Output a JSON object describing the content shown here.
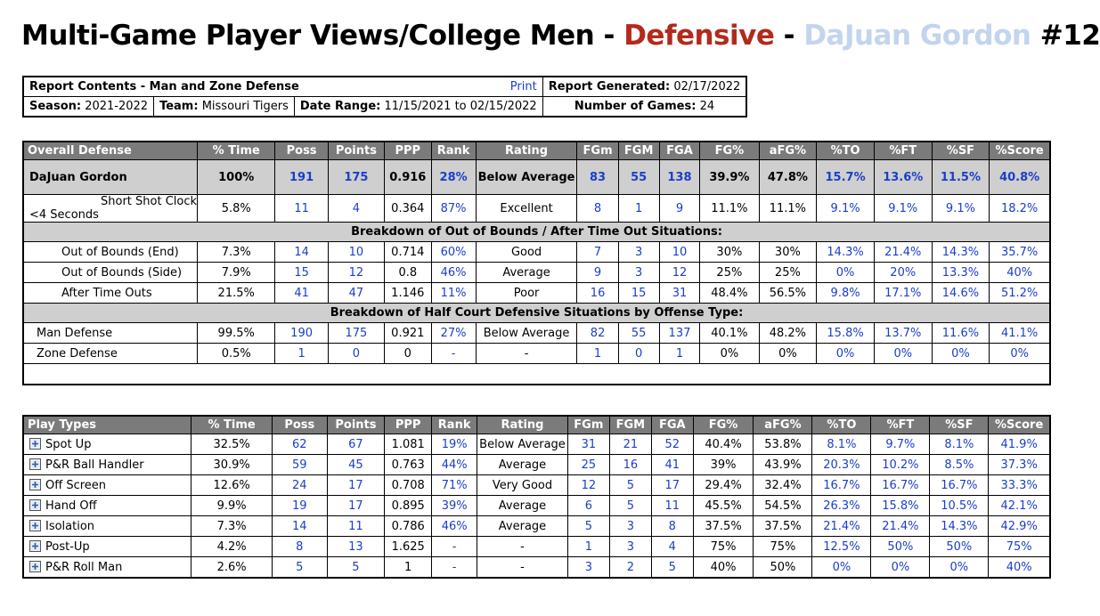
{
  "title": {
    "prefix": "Multi-Game Player Views/College Men - ",
    "defensive": "Defensive",
    "sep": " - ",
    "player": "DaJuan Gordon",
    "number": " #12"
  },
  "header": {
    "report_contents": "Report Contents - Man and Zone Defense",
    "print": "Print",
    "report_generated_label": "Report Generated:",
    "report_generated_value": "02/17/2022",
    "season_label": "Season:",
    "season_value": "2021-2022",
    "team_label": "Team:",
    "team_value": "Missouri Tigers",
    "date_range_label": "Date Range:",
    "date_range_value": "11/15/2021 to 02/15/2022",
    "games_label": "Number of Games:",
    "games_value": "24"
  },
  "overall": {
    "columns": [
      "Overall Defense",
      "% Time",
      "Poss",
      "Points",
      "PPP",
      "Rank",
      "Rating",
      "FGm",
      "FGM",
      "FGA",
      "FG%",
      "aFG%",
      "%TO",
      "%FT",
      "%SF",
      "%Score"
    ],
    "player_row": [
      "DaJuan Gordon",
      "100%",
      "191",
      "175",
      "0.916",
      "28%",
      "Below Average",
      "83",
      "55",
      "138",
      "39.9%",
      "47.8%",
      "15.7%",
      "13.6%",
      "11.5%",
      "40.8%"
    ],
    "ssc_line1": "Short Shot Clock",
    "ssc_line2": "<4 Seconds",
    "ssc_row": [
      "5.8%",
      "11",
      "4",
      "0.364",
      "87%",
      "Excellent",
      "8",
      "1",
      "9",
      "11.1%",
      "11.1%",
      "9.1%",
      "9.1%",
      "9.1%",
      "18.2%"
    ],
    "section1": "Breakdown of Out of Bounds / After Time Out Situations:",
    "oob_rows": [
      [
        "Out of Bounds (End)",
        "7.3%",
        "14",
        "10",
        "0.714",
        "60%",
        "Good",
        "7",
        "3",
        "10",
        "30%",
        "30%",
        "14.3%",
        "21.4%",
        "14.3%",
        "35.7%"
      ],
      [
        "Out of Bounds (Side)",
        "7.9%",
        "15",
        "12",
        "0.8",
        "46%",
        "Average",
        "9",
        "3",
        "12",
        "25%",
        "25%",
        "0%",
        "20%",
        "13.3%",
        "40%"
      ],
      [
        "After Time Outs",
        "21.5%",
        "41",
        "47",
        "1.146",
        "11%",
        "Poor",
        "16",
        "15",
        "31",
        "48.4%",
        "56.5%",
        "9.8%",
        "17.1%",
        "14.6%",
        "51.2%"
      ]
    ],
    "section2": "Breakdown of Half Court Defensive Situations by Offense Type:",
    "hc_rows": [
      [
        "Man Defense",
        "99.5%",
        "190",
        "175",
        "0.921",
        "27%",
        "Below Average",
        "82",
        "55",
        "137",
        "40.1%",
        "48.2%",
        "15.8%",
        "13.7%",
        "11.6%",
        "41.1%"
      ],
      [
        "Zone Defense",
        "0.5%",
        "1",
        "0",
        "0",
        "-",
        "-",
        "1",
        "0",
        "1",
        "0%",
        "0%",
        "0%",
        "0%",
        "0%",
        "0%"
      ]
    ]
  },
  "plays": {
    "columns": [
      "Play Types",
      "% Time",
      "Poss",
      "Points",
      "PPP",
      "Rank",
      "Rating",
      "FGm",
      "FGM",
      "FGA",
      "FG%",
      "aFG%",
      "%TO",
      "%FT",
      "%SF",
      "%Score"
    ],
    "rows": [
      [
        "Spot Up",
        "32.5%",
        "62",
        "67",
        "1.081",
        "19%",
        "Below Average",
        "31",
        "21",
        "52",
        "40.4%",
        "53.8%",
        "8.1%",
        "9.7%",
        "8.1%",
        "41.9%"
      ],
      [
        "P&R Ball Handler",
        "30.9%",
        "59",
        "45",
        "0.763",
        "44%",
        "Average",
        "25",
        "16",
        "41",
        "39%",
        "43.9%",
        "20.3%",
        "10.2%",
        "8.5%",
        "37.3%"
      ],
      [
        "Off Screen",
        "12.6%",
        "24",
        "17",
        "0.708",
        "71%",
        "Very Good",
        "12",
        "5",
        "17",
        "29.4%",
        "32.4%",
        "16.7%",
        "16.7%",
        "16.7%",
        "33.3%"
      ],
      [
        "Hand Off",
        "9.9%",
        "19",
        "17",
        "0.895",
        "39%",
        "Average",
        "6",
        "5",
        "11",
        "45.5%",
        "54.5%",
        "26.3%",
        "15.8%",
        "10.5%",
        "42.1%"
      ],
      [
        "Isolation",
        "7.3%",
        "14",
        "11",
        "0.786",
        "46%",
        "Average",
        "5",
        "3",
        "8",
        "37.5%",
        "37.5%",
        "21.4%",
        "21.4%",
        "14.3%",
        "42.9%"
      ],
      [
        "Post-Up",
        "4.2%",
        "8",
        "13",
        "1.625",
        "-",
        "-",
        "1",
        "3",
        "4",
        "75%",
        "75%",
        "12.5%",
        "50%",
        "50%",
        "75%"
      ],
      [
        "P&R Roll Man",
        "2.6%",
        "5",
        "5",
        "1",
        "-",
        "-",
        "3",
        "2",
        "5",
        "40%",
        "50%",
        "0%",
        "0%",
        "0%",
        "40%"
      ]
    ]
  },
  "colors": {
    "defensive": "#b22a1c",
    "player": "#c3d4ee",
    "link": "#1a3ec9",
    "header_bg": "#7b7b7b",
    "section_bg": "#cfcfcf"
  },
  "icons": {
    "expand": "plus-box-icon"
  }
}
